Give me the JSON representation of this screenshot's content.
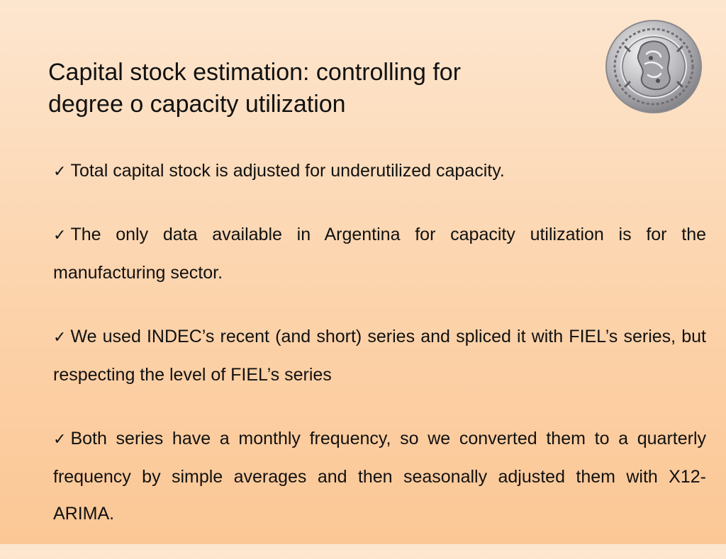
{
  "slide": {
    "title_line1": "Capital stock estimation: controlling for",
    "title_line2": "degree o capacity utilization",
    "logo": "central-bank-seal-icon",
    "bullet_marker": "✓",
    "bullets": [
      "Total capital stock is adjusted for underutilized capacity.",
      "The only data available in Argentina for capacity utilization is for the manufacturing sector.",
      "We used INDEC’s recent (and short) series and spliced it with FIEL’s series, but respecting the level of FIEL’s series",
      "Both series have a monthly frequency, so we converted them to a quarterly frequency by simple averages and then seasonally adjusted them with X12-ARIMA."
    ],
    "colors": {
      "background_top": "#fde6cf",
      "background_bottom": "#fbc795",
      "text": "#111111"
    }
  }
}
